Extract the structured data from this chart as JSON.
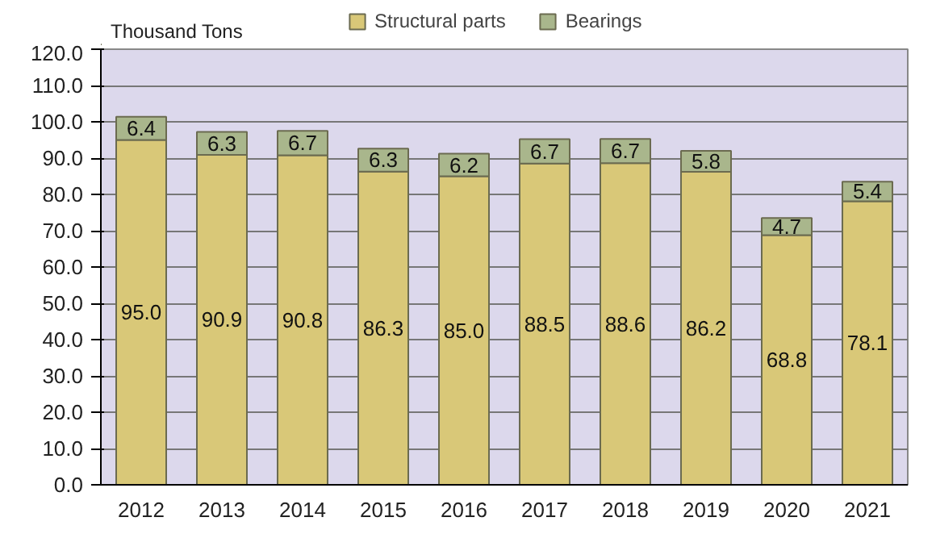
{
  "chart_data": {
    "type": "bar",
    "stacked": true,
    "ylabel": "Thousand  Tons",
    "categories": [
      "2012",
      "2013",
      "2014",
      "2015",
      "2016",
      "2017",
      "2018",
      "2019",
      "2020",
      "2021"
    ],
    "series": [
      {
        "name": "Structural parts",
        "color": "#d9c878",
        "values": [
          95.0,
          90.9,
          90.8,
          86.3,
          85.0,
          88.5,
          88.6,
          86.2,
          68.8,
          78.1
        ],
        "value_labels": [
          "95.0",
          "90.9",
          "90.8",
          "86.3",
          "85.0",
          "88.5",
          "88.6",
          "86.2",
          "68.8",
          "78.1"
        ]
      },
      {
        "name": "Bearings",
        "color": "#a9b68c",
        "values": [
          6.4,
          6.3,
          6.7,
          6.3,
          6.2,
          6.7,
          6.7,
          5.8,
          4.7,
          5.4
        ],
        "value_labels": [
          "6.4",
          "6.3",
          "6.7",
          "6.3",
          "6.2",
          "6.7",
          "6.7",
          "5.8",
          "4.7",
          "5.4"
        ]
      }
    ],
    "ylim": [
      0,
      120
    ],
    "yticks": [
      {
        "value": 0,
        "label": "0.0"
      },
      {
        "value": 10,
        "label": "10.0"
      },
      {
        "value": 20,
        "label": "20.0"
      },
      {
        "value": 30,
        "label": "30.0"
      },
      {
        "value": 40,
        "label": "40.0"
      },
      {
        "value": 50,
        "label": "50.0"
      },
      {
        "value": 60,
        "label": "60.0"
      },
      {
        "value": 70,
        "label": "70.0"
      },
      {
        "value": 80,
        "label": "80.0"
      },
      {
        "value": 90,
        "label": "90.0"
      },
      {
        "value": 100,
        "label": "100.0"
      },
      {
        "value": 110,
        "label": "110.0"
      },
      {
        "value": 120,
        "label": "120.0"
      }
    ],
    "grid": "y",
    "legend": "top"
  }
}
